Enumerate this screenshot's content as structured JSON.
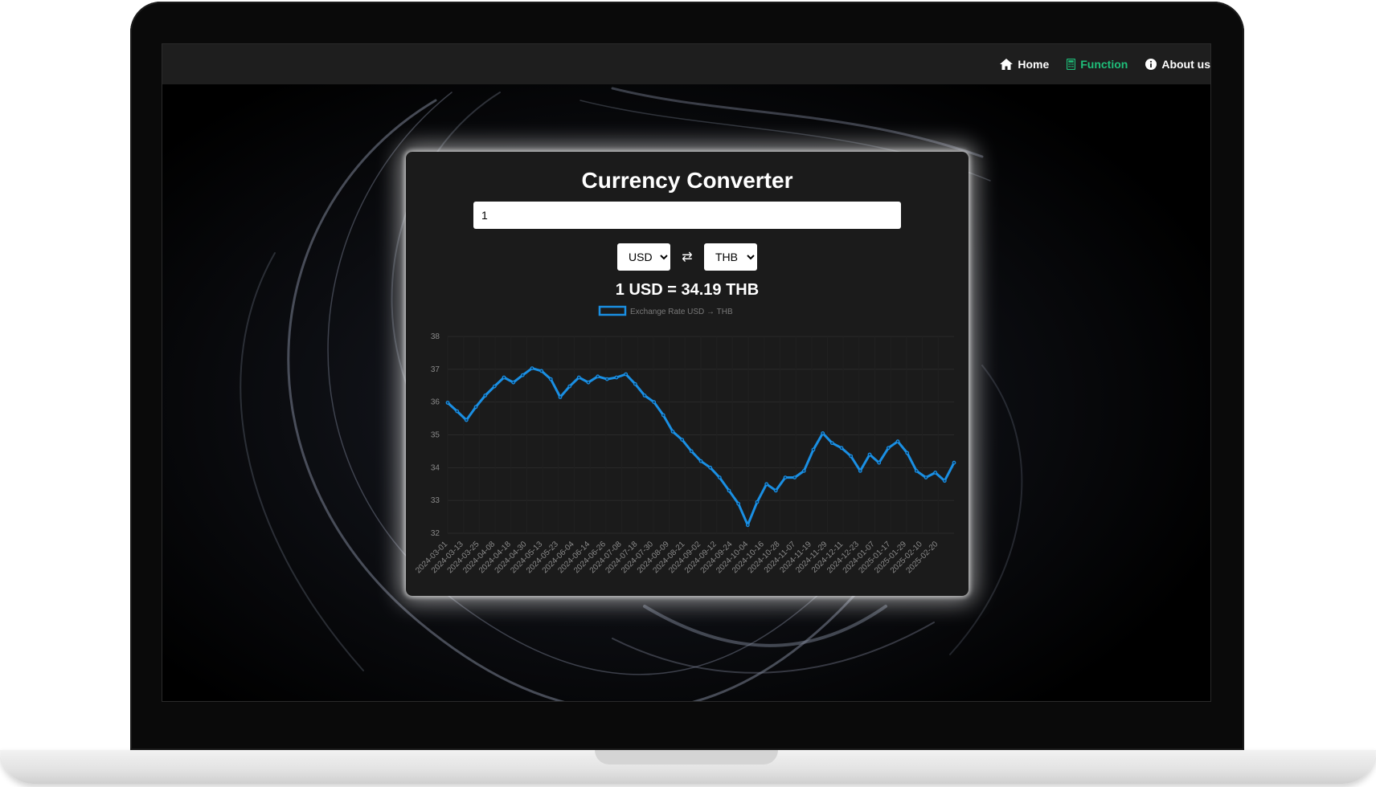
{
  "nav": {
    "items": [
      {
        "label": "Home",
        "icon": "home-icon",
        "active": false
      },
      {
        "label": "Function",
        "icon": "calculator-icon",
        "active": true
      },
      {
        "label": "About us",
        "icon": "info-icon",
        "active": false
      }
    ],
    "active_color": "#1fbf7a"
  },
  "converter": {
    "title": "Currency Converter",
    "amount": "1",
    "from_currency": "USD",
    "to_currency": "THB",
    "swap_symbol": "⇄",
    "result": "1 USD = 34.19 THB"
  },
  "chart_data": {
    "type": "line",
    "legend": "Exchange Rate USD → THB",
    "legend_position": "top",
    "line_color": "#1a8fe3",
    "ylim": [
      32,
      38
    ],
    "y_ticks": [
      38,
      37,
      36,
      35,
      34,
      33,
      32
    ],
    "x_tick_labels": [
      "2024-03-01",
      "2024-03-13",
      "2024-03-25",
      "2024-04-08",
      "2024-04-18",
      "2024-04-30",
      "2024-05-13",
      "2024-05-23",
      "2024-06-04",
      "2024-06-14",
      "2024-06-26",
      "2024-07-08",
      "2024-07-18",
      "2024-07-30",
      "2024-08-09",
      "2024-08-21",
      "2024-09-02",
      "2024-09-12",
      "2024-09-24",
      "2024-10-04",
      "2024-10-16",
      "2024-10-28",
      "2024-11-07",
      "2024-11-19",
      "2024-11-29",
      "2024-12-11",
      "2024-12-23",
      "2024-01-07",
      "2025-01-17",
      "2025-01-29",
      "2025-02-10",
      "2025-02-20"
    ],
    "x_start": "2024-03-01",
    "x_end": "2025-03-03",
    "grid": true,
    "series": [
      {
        "name": "Exchange Rate USD → THB",
        "values": [
          35.98,
          35.72,
          35.45,
          35.85,
          36.2,
          36.48,
          36.75,
          36.6,
          36.82,
          37.03,
          36.95,
          36.7,
          36.15,
          36.48,
          36.75,
          36.6,
          36.78,
          36.7,
          36.75,
          36.85,
          36.55,
          36.2,
          36.0,
          35.6,
          35.1,
          34.85,
          34.5,
          34.2,
          34.0,
          33.7,
          33.3,
          32.9,
          32.25,
          32.95,
          33.5,
          33.3,
          33.7,
          33.7,
          33.9,
          34.55,
          35.05,
          34.75,
          34.6,
          34.35,
          33.9,
          34.4,
          34.15,
          34.6,
          34.8,
          34.45,
          33.9,
          33.7,
          33.85,
          33.6,
          34.15
        ]
      }
    ]
  }
}
